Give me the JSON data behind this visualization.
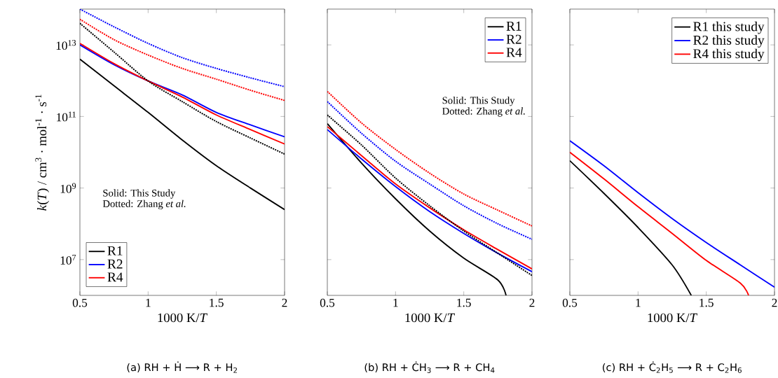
{
  "chart_data": [
    {
      "type": "line",
      "xlabel": "1000 K/*T*",
      "ylabel": "*k*(*T*) / cm$^{3}$ · mol$^{-1}$ · s$^{-1}$",
      "log": "y",
      "legend": "bottom left",
      "xlim": [
        0.5,
        2
      ],
      "xticks": [
        0.5,
        1,
        1.5,
        2
      ],
      "ylim": [
        1000000.0,
        100000000000000.0
      ],
      "yticks": [
        {
          "value": 10000000.0,
          "label": "10$^{7}$"
        },
        {
          "value": 1000000000.0,
          "label": "10$^{9}$"
        },
        {
          "value": 100000000000.0,
          "label": "10$^{11}$"
        },
        {
          "value": 10000000000000.0,
          "label": "10$^{13}$"
        }
      ],
      "x": [
        0.5,
        0.75,
        1,
        1.25,
        1.5,
        1.75,
        2
      ],
      "series": [
        {
          "name": "R1",
          "color": "#000000",
          "line_style": "solid",
          "values": [
            4000000000000.0,
            720000000000.0,
            130000000000.0,
            22000000000.0,
            4200000000.0,
            1000000000.0,
            250000000.0
          ]
        },
        {
          "name": "R2",
          "color": "#0000ff",
          "line_style": "solid",
          "values": [
            10000000000000.0,
            2800000000000.0,
            980000000000.0,
            400000000000.0,
            130000000000.0,
            58000000000.0,
            27000000000.0
          ]
        },
        {
          "name": "R4",
          "color": "#ff0000",
          "line_style": "solid",
          "values": [
            11000000000000.0,
            3000000000000.0,
            980000000000.0,
            350000000000.0,
            110000000000.0,
            43000000000.0,
            17000000000.0
          ]
        },
        {
          "color": "#000000",
          "line_style": "dotted",
          "values": [
            40000000000000.0,
            6300000000000.0,
            980000000000.0,
            260000000000.0,
            72000000000.0,
            25000000000.0,
            8900000000.0
          ]
        },
        {
          "color": "#0000ff",
          "line_style": "dotted",
          "values": [
            100000000000000.0,
            32000000000000.0,
            11000000000000.0,
            4400000000000.0,
            2200000000000.0,
            1200000000000.0,
            680000000000.0
          ]
        },
        {
          "color": "#ff0000",
          "line_style": "dotted",
          "values": [
            52000000000000.0,
            14000000000000.0,
            5200000000000.0,
            2200000000000.0,
            1100000000000.0,
            540000000000.0,
            280000000000.0
          ]
        }
      ],
      "annotations": [
        "Solid: This Study",
        "Dotted: Zhang *et al.*",
        "(a)  RH + Ḣ ⟶ R + H$_{2}$"
      ]
    },
    {
      "type": "line",
      "xlabel": "1000 K/*T*",
      "log": "y",
      "legend": "top right",
      "tick_labels": "x",
      "xlim": [
        0.5,
        2
      ],
      "xticks": [
        0.5,
        1,
        1.5,
        2
      ],
      "ylim": [
        1000000.0,
        100000000000000.0
      ],
      "yticks": [
        {
          "value": 10000000.0,
          "label": null
        },
        {
          "value": 1000000000.0,
          "label": null
        },
        {
          "value": 100000000000.0,
          "label": null
        },
        {
          "value": 10000000000000.0,
          "label": null
        }
      ],
      "x": [
        0.5,
        0.75,
        1,
        1.25,
        1.5,
        1.75,
        2
      ],
      "series": [
        {
          "name": "R1",
          "color": "#000000",
          "line_style": "solid",
          "x": [
            0.5,
            0.75,
            1,
            1.25,
            1.5,
            1.75,
            1.81
          ],
          "values": [
            63000000000.0,
            5000000000.0,
            500000000.0,
            63000000.0,
            11000000.0,
            2700000.0,
            1000000.0
          ]
        },
        {
          "name": "R2",
          "color": "#0000ff",
          "line_style": "solid",
          "values": [
            43000000000.0,
            6500000000.0,
            1100000000.0,
            220000000.0,
            54000000.0,
            15000000.0,
            4600000.0
          ]
        },
        {
          "name": "R4",
          "color": "#ff0000",
          "line_style": "solid",
          "values": [
            52000000000.0,
            8100000000.0,
            1300000000.0,
            280000000.0,
            68000000.0,
            19000000.0,
            5500000.0
          ]
        },
        {
          "color": "#000000",
          "line_style": "dotted",
          "values": [
            110000000000.0,
            16000000000.0,
            1900000000.0,
            320000000.0,
            63000000.0,
            15000000.0,
            3600000.0
          ]
        },
        {
          "color": "#0000ff",
          "line_style": "dotted",
          "values": [
            260000000000.0,
            34000000000.0,
            5600000000.0,
            1300000000.0,
            320000000.0,
            100000000.0,
            37000000.0
          ]
        },
        {
          "color": "#ff0000",
          "line_style": "dotted",
          "values": [
            500000000000.0,
            66000000000.0,
            12000000000.0,
            2600000000.0,
            680000000.0,
            240000000.0,
            87000000.0
          ]
        }
      ],
      "annotations": [
        "Solid: This Study",
        "Dotted: Zhang *et al.*",
        "(b)  RH + ĊH$_{3}$ ⟶ R + CH$_{4}$"
      ]
    },
    {
      "type": "line",
      "xlabel": "1000 K/*T*",
      "log": "y",
      "legend": "top right",
      "tick_labels": "x",
      "xlim": [
        0.5,
        2
      ],
      "xticks": [
        0.5,
        1,
        1.5,
        2
      ],
      "ylim": [
        1000000.0,
        100000000000000.0
      ],
      "yticks": [
        {
          "value": 10000000.0,
          "label": null
        },
        {
          "value": 1000000000.0,
          "label": null
        },
        {
          "value": 100000000000.0,
          "label": null
        },
        {
          "value": 10000000000000.0,
          "label": null
        }
      ],
      "x": [
        0.5,
        0.75,
        1,
        1.25,
        1.5,
        1.75,
        2
      ],
      "series": [
        {
          "name": "R1 this study",
          "color": "#000000",
          "line_style": "solid",
          "x": [
            0.5,
            0.75,
            1,
            1.25,
            1.39
          ],
          "values": [
            5800000000.0,
            710000000.0,
            79000000.0,
            7100000.0,
            1000000.0
          ]
        },
        {
          "name": "R2 this study",
          "color": "#0000ff",
          "line_style": "solid",
          "values": [
            21000000000.0,
            4200000000.0,
            740000000.0,
            140000000.0,
            30000000.0,
            7100000.0,
            1700000.0
          ]
        },
        {
          "name": "R4 this study",
          "color": "#ff0000",
          "line_style": "solid",
          "x": [
            0.5,
            0.75,
            1,
            1.25,
            1.5,
            1.75,
            1.81
          ],
          "values": [
            10000000000.0,
            1800000000.0,
            300000000.0,
            54000000.0,
            9500000.0,
            2200000.0,
            1000000.0
          ]
        }
      ],
      "annotations": [
        "(c)  RH + Ċ$_{2}$H$_{5}$ ⟶ R + C$_{2}$H$_{6}$"
      ]
    }
  ]
}
